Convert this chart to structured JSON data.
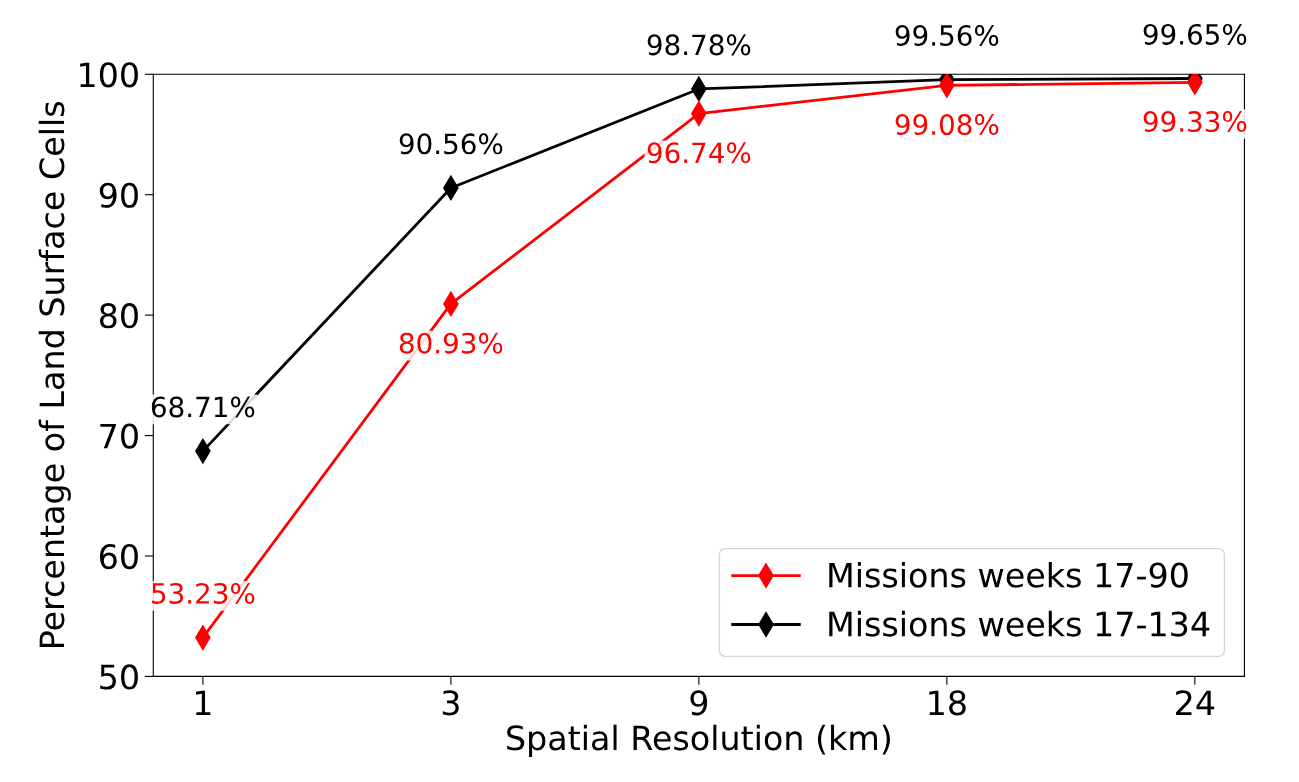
{
  "chart_data": {
    "type": "line",
    "xlabel": "Spatial Resolution (km)",
    "ylabel": "Percentage of Land Surface Cells",
    "categories": [
      "1",
      "3",
      "9",
      "18",
      "24"
    ],
    "series": [
      {
        "name": "Missions weeks 17-90",
        "color": "#ff0000",
        "values": [
          53.23,
          80.93,
          96.74,
          99.08,
          99.33
        ],
        "value_labels": [
          "53.23%",
          "80.93%",
          "96.74%",
          "99.08%",
          "99.33%"
        ]
      },
      {
        "name": "Missions weeks 17-134",
        "color": "#000000",
        "values": [
          68.71,
          90.56,
          98.78,
          99.56,
          99.65
        ],
        "value_labels": [
          "68.71%",
          "90.56%",
          "98.78%",
          "99.56%",
          "99.65%"
        ]
      }
    ],
    "ylim": [
      50,
      100
    ],
    "yticks": [
      50,
      60,
      70,
      80,
      90,
      100
    ],
    "marker": "diamond",
    "line_style": "solid",
    "legend": "bottom right",
    "grid": false
  }
}
